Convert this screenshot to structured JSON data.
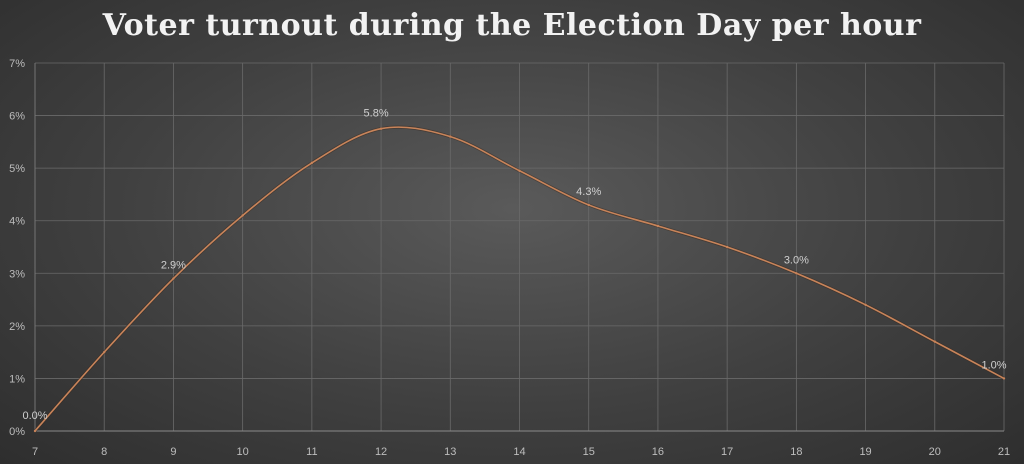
{
  "chart_data": {
    "type": "line",
    "title": "Voter turnout during the Election Day per hour",
    "xlabel": "",
    "ylabel": "",
    "x": [
      7,
      8,
      9,
      10,
      11,
      12,
      13,
      14,
      15,
      16,
      17,
      18,
      19,
      20,
      21
    ],
    "series": [
      {
        "values": [
          0.0,
          1.5,
          2.9,
          4.1,
          5.1,
          5.75,
          5.6,
          4.95,
          4.3,
          3.9,
          3.5,
          3.0,
          2.4,
          1.7,
          1.0
        ]
      }
    ],
    "data_labels": [
      {
        "x": 7,
        "text": "0.0%"
      },
      {
        "x": 9,
        "text": "2.9%"
      },
      {
        "x": 12,
        "text": "5.8%"
      },
      {
        "x": 15,
        "text": "4.3%"
      },
      {
        "x": 18,
        "text": "3.0%"
      },
      {
        "x": 21,
        "text": "1.0%"
      }
    ],
    "x_ticks": [
      "7",
      "8",
      "9",
      "10",
      "11",
      "12",
      "13",
      "14",
      "15",
      "16",
      "17",
      "18",
      "19",
      "20",
      "21"
    ],
    "y_ticks": [
      "0%",
      "1%",
      "2%",
      "3%",
      "4%",
      "5%",
      "6%",
      "7%"
    ],
    "xlim": [
      7,
      21
    ],
    "ylim": [
      0,
      7
    ],
    "grid": true,
    "line_color": "#c8845a",
    "grid_color": "#6a6a6a"
  }
}
